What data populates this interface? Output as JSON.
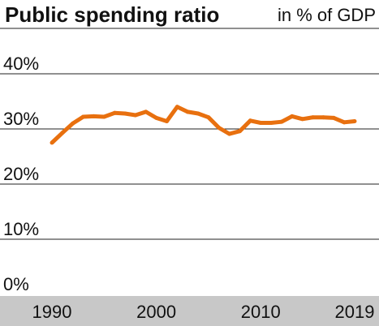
{
  "chart_data": {
    "type": "line",
    "title": "Public spending ratio",
    "unit_label": "in % of GDP",
    "xlabel": "",
    "ylabel": "",
    "ylim": [
      0,
      40
    ],
    "xlim": [
      1990,
      2019
    ],
    "y_ticks": [
      0,
      10,
      20,
      30,
      40
    ],
    "y_tick_labels": [
      "0%",
      "10%",
      "20%",
      "30%",
      "40%"
    ],
    "x_tick_labels": [
      {
        "value": 1990,
        "label": "1990"
      },
      {
        "value": 2000,
        "label": "2000"
      },
      {
        "value": 2010,
        "label": "2010"
      },
      {
        "value": 2019,
        "label": "2019"
      }
    ],
    "grid": true,
    "series": [
      {
        "color": "#e8700f",
        "x": [
          1990,
          1991,
          1992,
          1993,
          1994,
          1995,
          1996,
          1997,
          1998,
          1999,
          2000,
          2001,
          2002,
          2003,
          2004,
          2005,
          2006,
          2007,
          2008,
          2009,
          2010,
          2011,
          2012,
          2013,
          2014,
          2015,
          2016,
          2017,
          2018,
          2019
        ],
        "values": [
          27.5,
          29.3,
          31.0,
          32.2,
          32.3,
          32.2,
          32.9,
          32.8,
          32.5,
          33.1,
          32.0,
          31.4,
          34.0,
          33.1,
          32.8,
          32.1,
          30.2,
          29.1,
          29.6,
          31.5,
          31.1,
          31.1,
          31.3,
          32.3,
          31.8,
          32.1,
          32.1,
          32.0,
          31.2,
          31.4
        ]
      }
    ]
  },
  "colors": {
    "line": "#e8700f",
    "gridline": "#222222",
    "axis_band": "#c8c8c8",
    "text": "#111111"
  }
}
